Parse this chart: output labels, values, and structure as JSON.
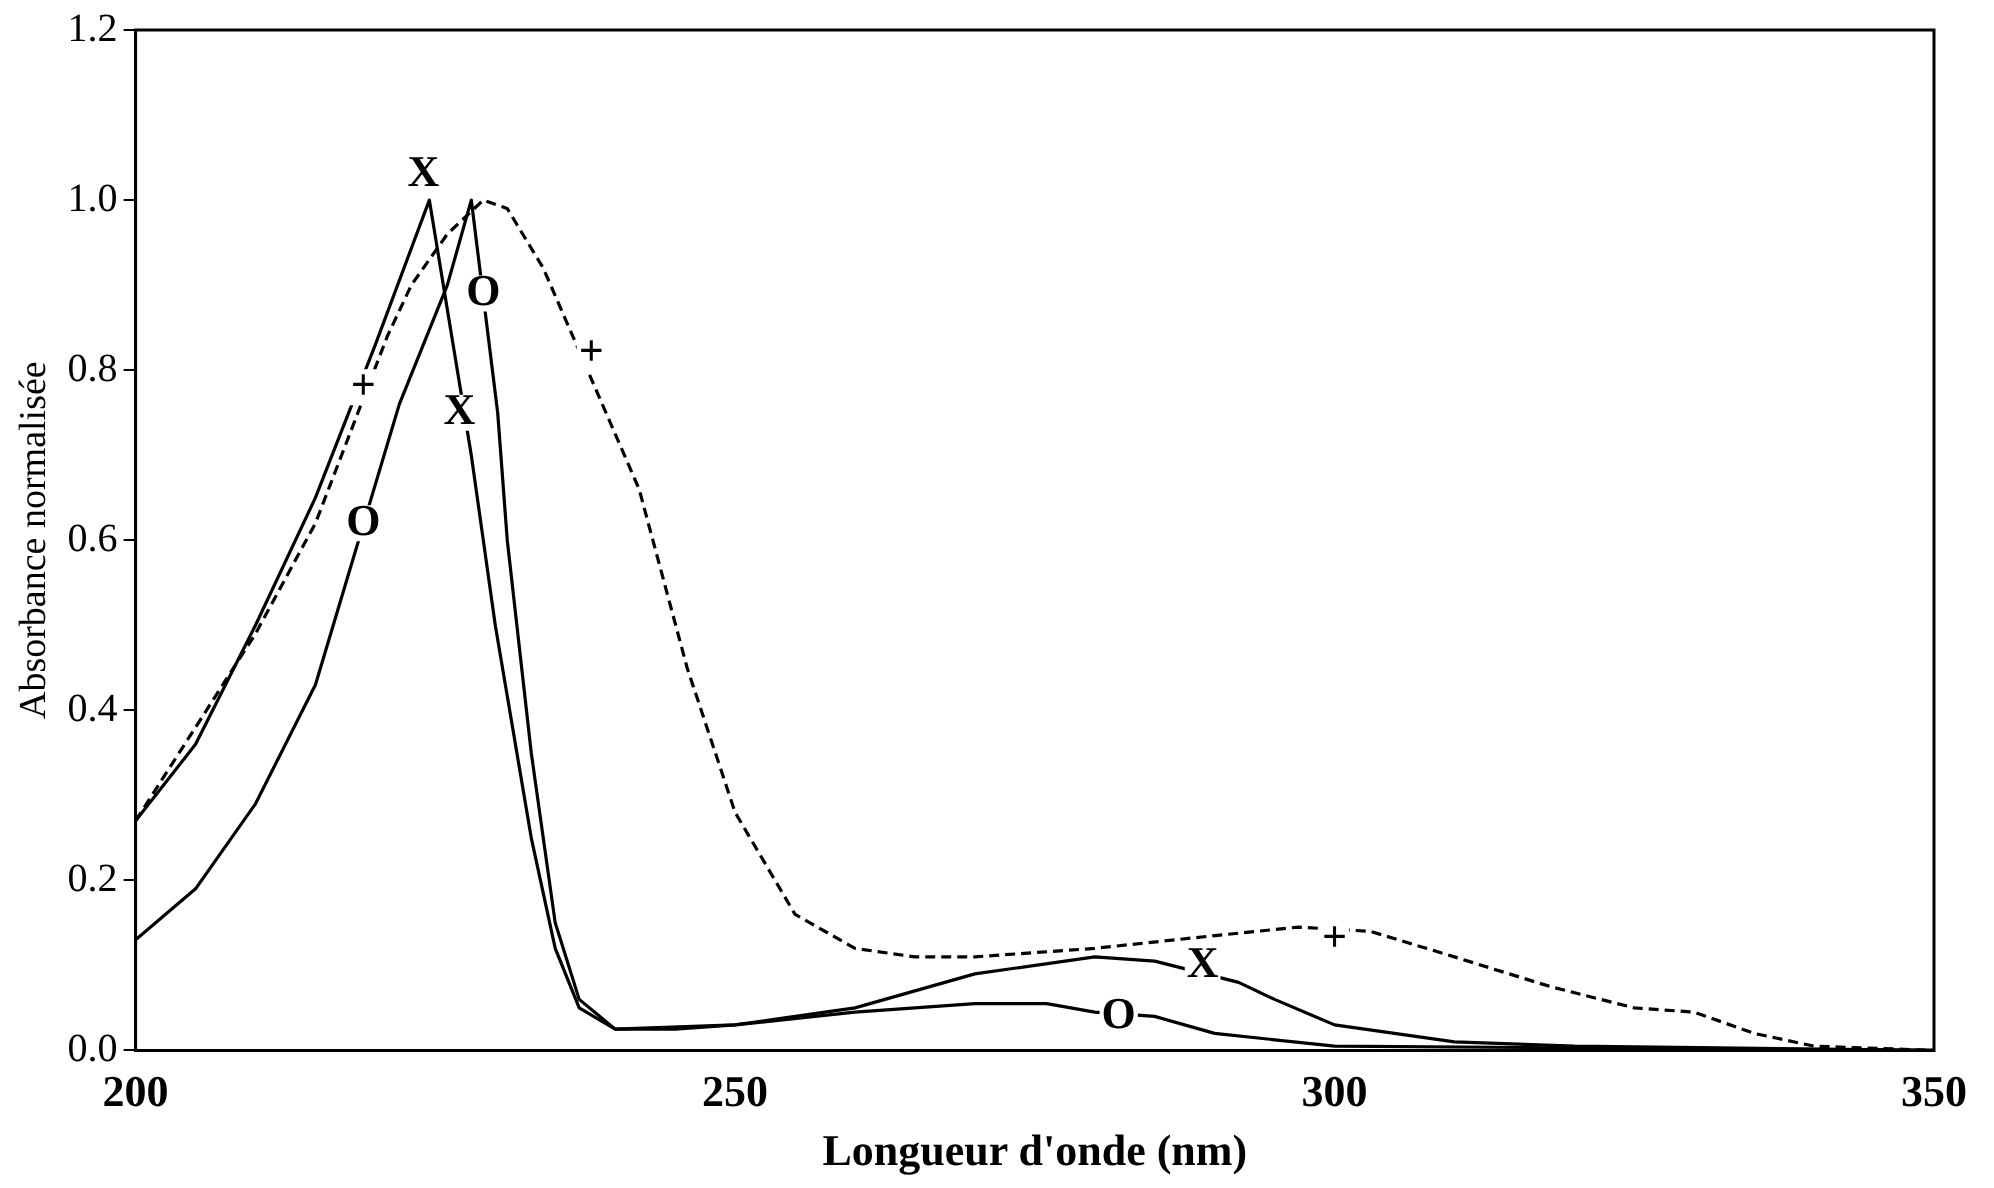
{
  "chart_data": {
    "type": "line",
    "xlabel": "Longueur d'onde (nm)",
    "ylabel": "Absorbance normalisée",
    "xlim": [
      200,
      350
    ],
    "xticks": [
      200,
      250,
      300,
      350
    ],
    "ylim": [
      0,
      1.2
    ],
    "yticks": [
      {
        "value": 0,
        "label": "0.0"
      },
      {
        "value": 0.2,
        "label": "0.2"
      },
      {
        "value": 0.4,
        "label": "0.4"
      },
      {
        "value": 0.6,
        "label": "0.6"
      },
      {
        "value": 0.8,
        "label": "0.8"
      },
      {
        "value": 1,
        "label": "1.0"
      },
      {
        "value": 1.2,
        "label": "1.2"
      }
    ],
    "grid": false,
    "legend": false,
    "marker": "none",
    "series": [
      {
        "color": "#000000",
        "line_style": "solid",
        "x": [
          200,
          205,
          210,
          215,
          220,
          224.5,
          228,
          230,
          233,
          235,
          237,
          240,
          245,
          250,
          260,
          270,
          280,
          285,
          292,
          295,
          300,
          310,
          320,
          350
        ],
        "values": [
          0.27,
          0.36,
          0.5,
          0.65,
          0.83,
          1.0,
          0.7,
          0.5,
          0.25,
          0.12,
          0.05,
          0.025,
          0.025,
          0.03,
          0.05,
          0.09,
          0.11,
          0.105,
          0.08,
          0.06,
          0.03,
          0.01,
          0.005,
          0
        ]
      },
      {
        "color": "#000000",
        "line_style": "dashed",
        "x": [
          200,
          210,
          215,
          221,
          223,
          226,
          229,
          231,
          234,
          242,
          246,
          250,
          255,
          260,
          265,
          270,
          280,
          290,
          297,
          303,
          310,
          318,
          325,
          330,
          335,
          340,
          350
        ],
        "values": [
          0.27,
          0.49,
          0.62,
          0.84,
          0.9,
          0.96,
          1.0,
          0.99,
          0.92,
          0.66,
          0.45,
          0.28,
          0.16,
          0.12,
          0.11,
          0.11,
          0.12,
          0.135,
          0.145,
          0.14,
          0.11,
          0.075,
          0.05,
          0.045,
          0.02,
          0.005,
          0
        ]
      },
      {
        "color": "#000000",
        "line_style": "solid",
        "x": [
          200,
          205,
          210,
          215,
          222,
          226,
          228,
          230.2,
          231,
          233,
          235,
          237,
          240,
          250,
          260,
          270,
          276,
          280,
          285,
          290,
          300,
          350
        ],
        "values": [
          0.13,
          0.19,
          0.29,
          0.43,
          0.76,
          0.9,
          1.0,
          0.75,
          0.6,
          0.35,
          0.15,
          0.06,
          0.025,
          0.03,
          0.045,
          0.055,
          0.055,
          0.045,
          0.04,
          0.02,
          0.005,
          0
        ]
      }
    ],
    "annotations": [
      {
        "text": "X",
        "x": 224,
        "y": 1.03
      },
      {
        "text": "X",
        "x": 227,
        "y": 0.75
      },
      {
        "text": "X",
        "x": 289,
        "y": 0.1
      },
      {
        "text": "+",
        "x": 219,
        "y": 0.78
      },
      {
        "text": "+",
        "x": 238,
        "y": 0.82
      },
      {
        "text": "+",
        "x": 300,
        "y": 0.13
      },
      {
        "text": "O",
        "x": 219,
        "y": 0.62
      },
      {
        "text": "O",
        "x": 229,
        "y": 0.89
      },
      {
        "text": "O",
        "x": 282,
        "y": 0.04
      }
    ]
  }
}
